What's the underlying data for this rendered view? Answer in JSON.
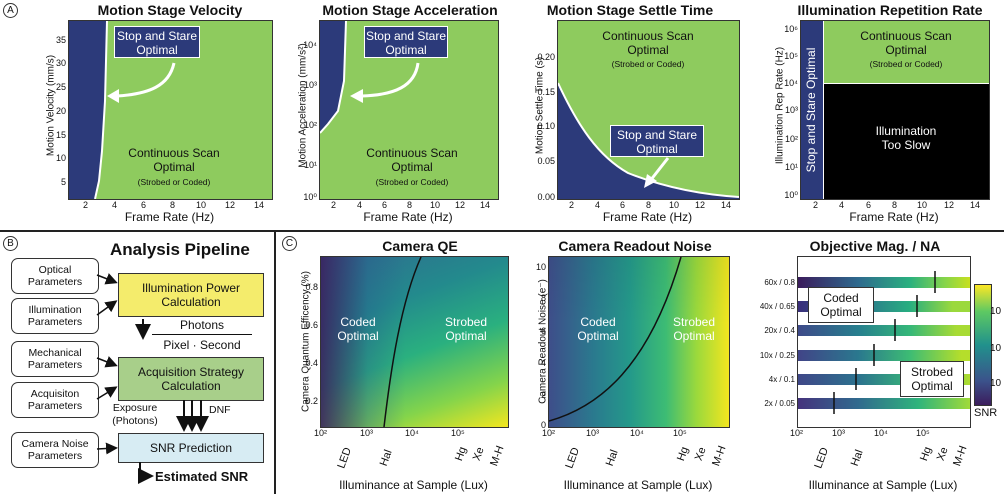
{
  "panel_a": {
    "letter": "A",
    "velocity": {
      "title": "Motion Stage Velocity",
      "ylabel": "Motion Velocity (mm/s)",
      "xlabel": "Frame Rate (Hz)",
      "yticks": [
        "5",
        "10",
        "15",
        "20",
        "25",
        "30",
        "35"
      ],
      "xticks": [
        "2",
        "4",
        "6",
        "8",
        "10",
        "12",
        "14"
      ],
      "box_label": "Stop and Stare Optimal",
      "region_label": "Continuous Scan Optimal",
      "region_sub": "(Strobed or Coded)"
    },
    "acceleration": {
      "title": "Motion Stage Acceleration",
      "ylabel": "Motion Acceleration (mm/s²)",
      "xlabel": "Frame Rate (Hz)",
      "yticks": [
        "10⁰",
        "10¹",
        "10²",
        "10³",
        "10⁴"
      ],
      "xticks": [
        "2",
        "4",
        "6",
        "8",
        "10",
        "12",
        "14"
      ],
      "box_label": "Stop and Stare Optimal",
      "region_label": "Continuous Scan Optimal",
      "region_sub": "(Strobed or Coded)"
    },
    "settle": {
      "title": "Motion Stage Settle Time",
      "ylabel": "Motion Settle Time (s)",
      "xlabel": "Frame Rate (Hz)",
      "yticks": [
        "0.00",
        "0.05",
        "0.10",
        "0.15",
        "0.20"
      ],
      "xticks": [
        "2",
        "4",
        "6",
        "8",
        "10",
        "12",
        "14"
      ],
      "box_label": "Stop and Stare Optimal",
      "region_label": "Continuous Scan Optimal",
      "region_sub": "(Strobed or Coded)"
    },
    "reprate": {
      "title": "Illumination Repetition Rate",
      "ylabel": "Illumination Rep Rate (Hz)",
      "xlabel": "Frame Rate (Hz)",
      "yticks": [
        "10⁰",
        "10¹",
        "10²",
        "10³",
        "10⁴",
        "10⁵",
        "10⁶"
      ],
      "xticks": [
        "2",
        "4",
        "6",
        "8",
        "10",
        "12",
        "14"
      ],
      "side_label": "Stop and Stare Optimal",
      "region_label": "Continuous Scan Optimal",
      "region_sub": "(Strobed or Coded)",
      "black_label": "Illumination Too Slow"
    }
  },
  "panel_b": {
    "letter": "B",
    "title": "Analysis Pipeline",
    "inputs": [
      "Optical Parameters",
      "Illumination Parameters",
      "Mechanical Parameters",
      "Acquisiton Parameters",
      "Camera Noise Parameters"
    ],
    "stages": [
      "Illumination Power Calculation",
      "Acquisition Strategy Calculation",
      "SNR Prediction"
    ],
    "fraction_top": "Photons",
    "fraction_bottom": "Pixel · Second",
    "exposure": "Exposure (Photons)",
    "dnf": "DNF",
    "output": "Estimated SNR",
    "colors": {
      "illum": "#f4ec6c",
      "acq": "#a8cf8a",
      "snr": "#d7ecf3"
    }
  },
  "panel_c": {
    "letter": "C",
    "qe": {
      "title": "Camera QE",
      "ylabel": "Camera Quantum Efficency (%)",
      "yticks": [
        "0.2",
        "0.4",
        "0.6",
        "0.8"
      ],
      "left_label": "Coded Optimal",
      "right_label": "Strobed Optimal"
    },
    "noise": {
      "title": "Camera Readout Noise",
      "ylabel": "Camera Readout Noise (e⁻)",
      "yticks": [
        "0",
        "2",
        "4",
        "6",
        "8",
        "10"
      ],
      "left_label": "Coded Optimal",
      "right_label": "Strobed Optimal"
    },
    "objective": {
      "title": "Objective Mag. / NA",
      "rows": [
        "60x / 0.8",
        "40x / 0.65",
        "20x / 0.4",
        "10x / 0.25",
        "4x / 0.1",
        "2x / 0.05"
      ],
      "left_label": "Coded Optimal",
      "right_label": "Strobed Optimal",
      "colorbar_ticks": [
        "10",
        "10",
        "10"
      ],
      "colorbar_label": "SNR"
    },
    "xlabel": "Illuminance at Sample (Lux)",
    "xticks": [
      "10²",
      "10³",
      "10⁴",
      "10⁵"
    ],
    "sources": [
      "LED",
      "Hal",
      "Hg",
      "Xe",
      "M-H"
    ]
  },
  "colors": {
    "green": "#8ecb5e",
    "navy": "#2c3a7a",
    "black": "#000000"
  }
}
